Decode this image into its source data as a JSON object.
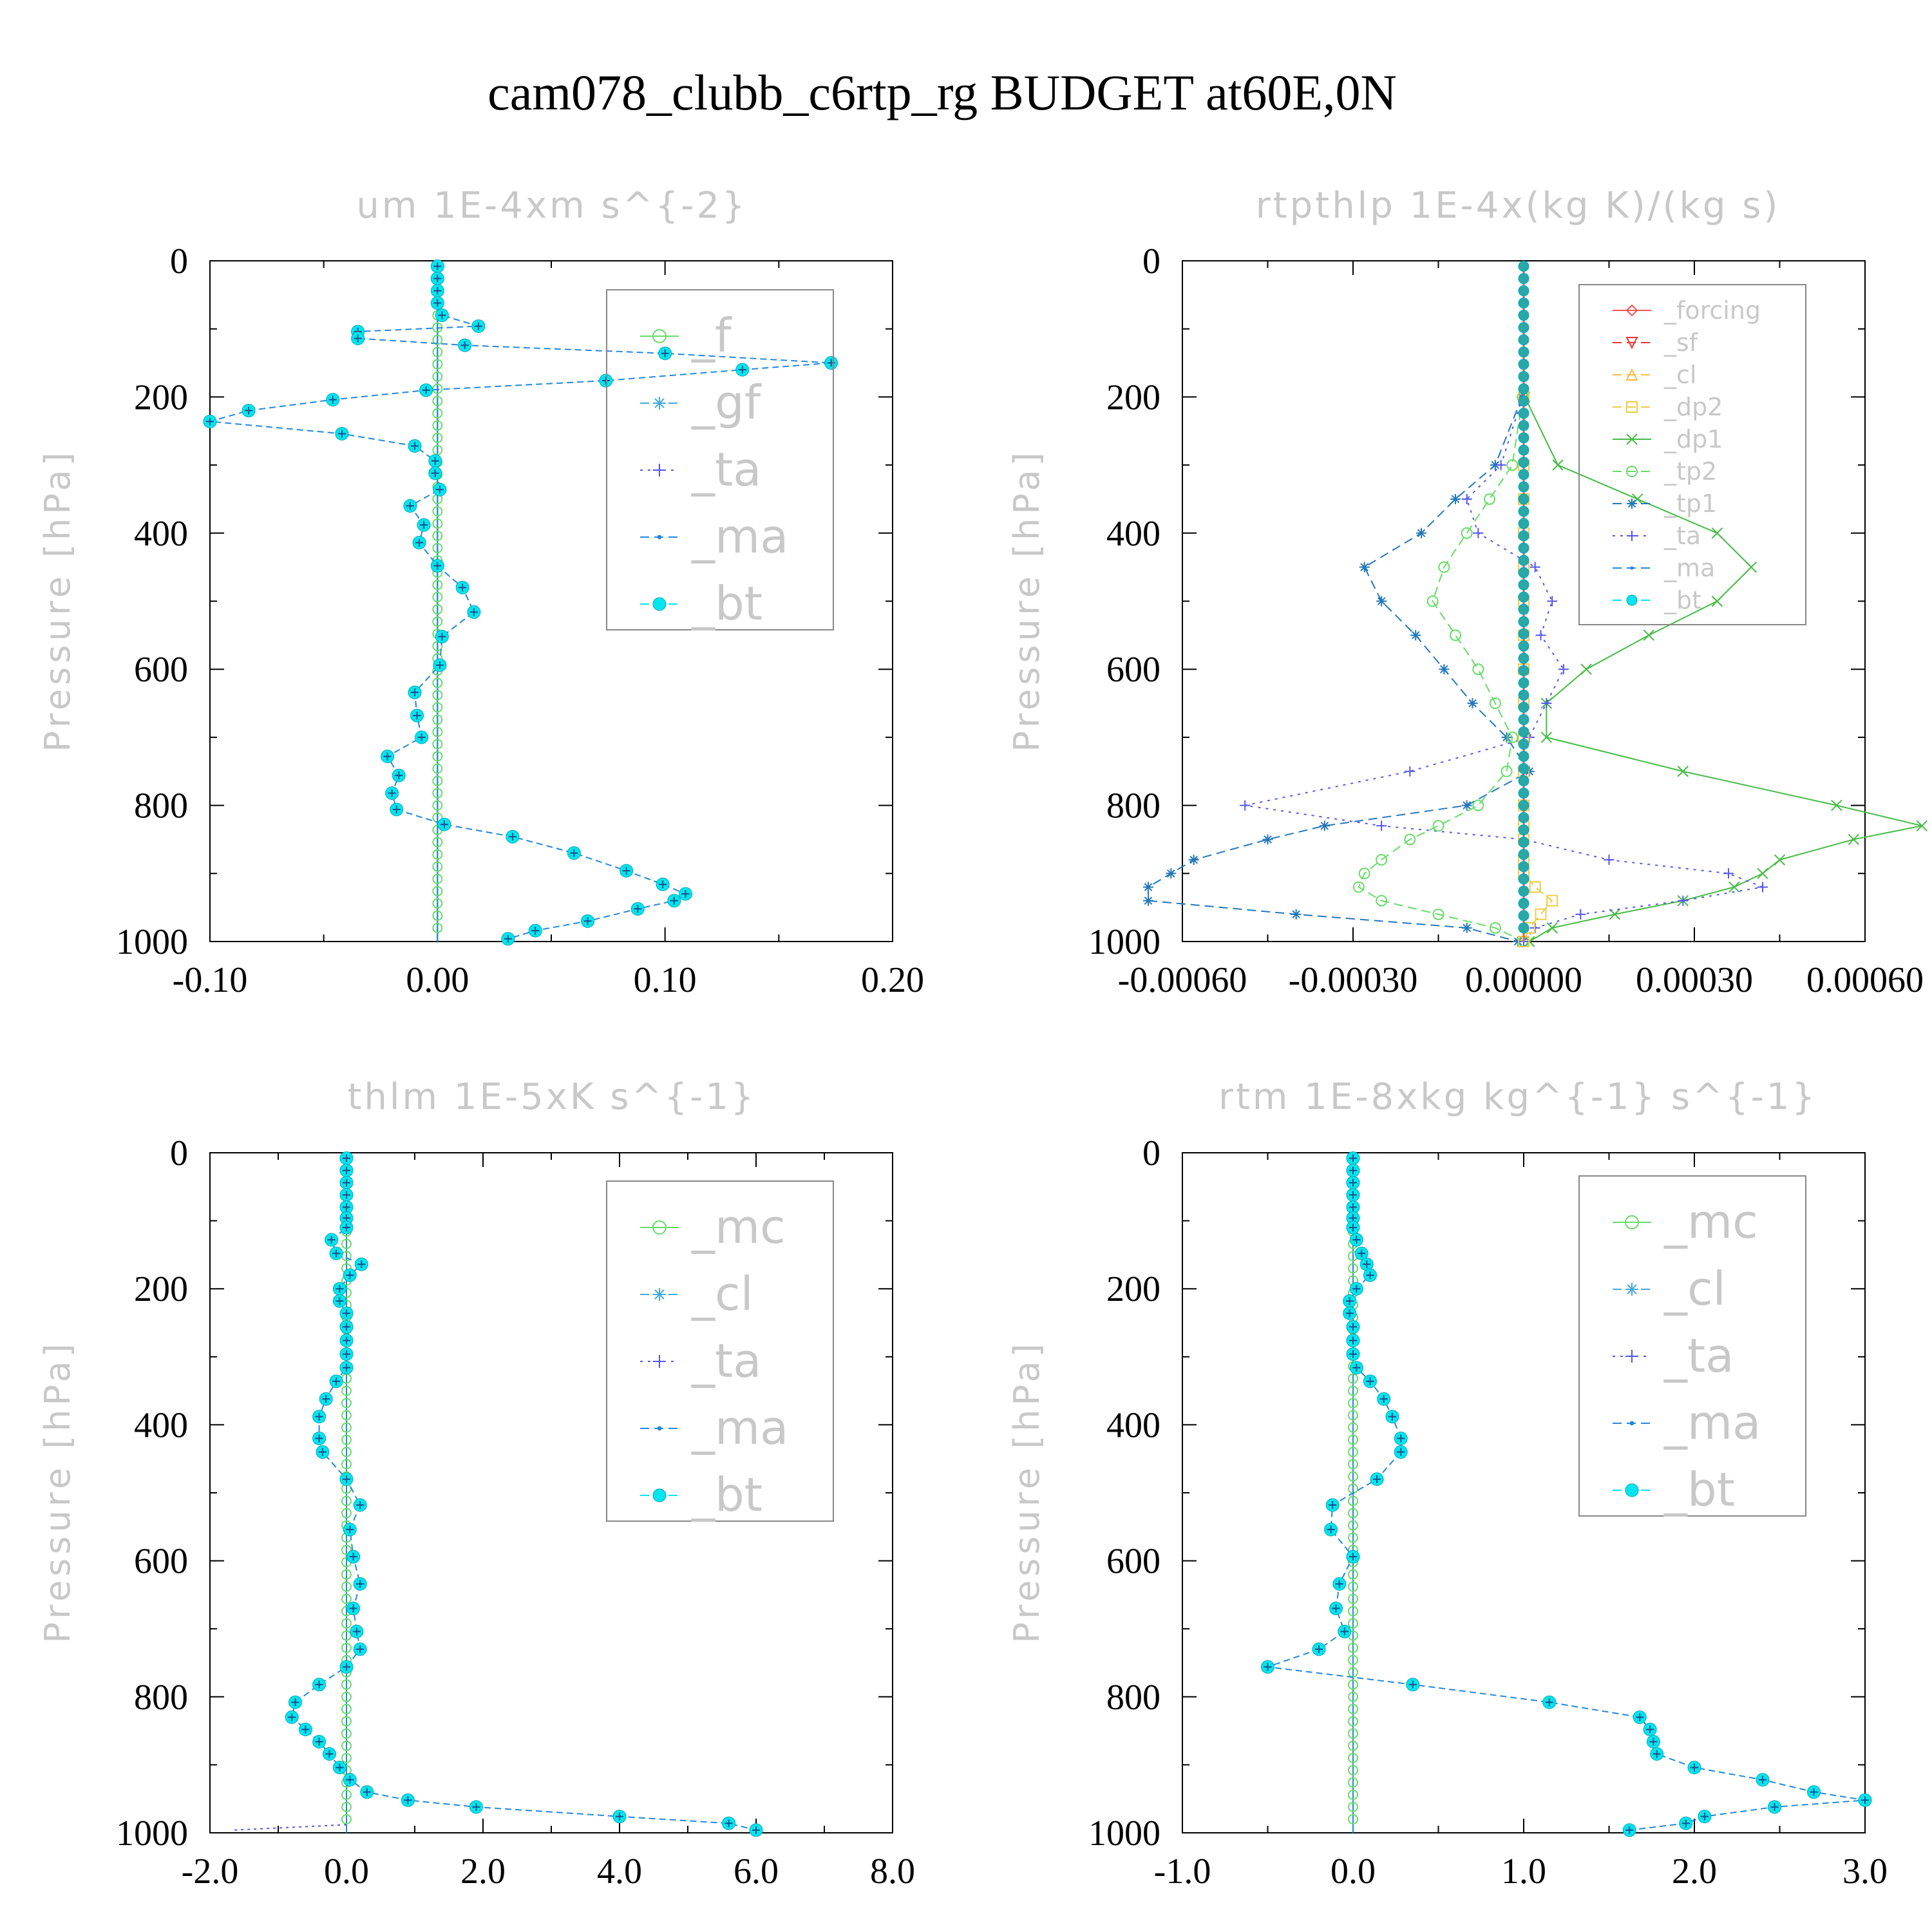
{
  "figure": {
    "title": "cam078_clubb_c6rtp_rg  BUDGET at60E,0N"
  },
  "chart_data": [
    {
      "id": "um",
      "type": "line",
      "title": "um   1E-4xm s^{-2}",
      "ylabel": "Pressure [hPa]",
      "xlim": [
        -0.1,
        0.2
      ],
      "xticks": [
        "-0.10",
        "0.00",
        "0.10",
        "0.20"
      ],
      "xtick_values": [
        -0.1,
        0.0,
        0.1,
        0.2
      ],
      "ylim": [
        0,
        1000
      ],
      "yticks": [
        "0",
        "200",
        "400",
        "600",
        "800",
        "1000"
      ],
      "legend_position": "top-right",
      "legend_size": "large",
      "series": [
        {
          "name": "_f",
          "color": "#66dd66",
          "marker": "circle-open",
          "style": "solid"
        },
        {
          "name": "_gf",
          "color": "#44aadd",
          "marker": "star",
          "style": "dash"
        },
        {
          "name": "_ta",
          "color": "#5555ee",
          "marker": "plus",
          "style": "dot"
        },
        {
          "name": "_ma",
          "color": "#2288dd",
          "marker": "dot",
          "style": "dash"
        },
        {
          "name": "_bt",
          "color": "#00e5ee",
          "marker": "filled-circle",
          "style": "dash"
        }
      ],
      "bt_profile": {
        "p": [
          8,
          26,
          44,
          62,
          80,
          96,
          104,
          114,
          124,
          136,
          150,
          160,
          176,
          190,
          204,
          220,
          236,
          254,
          272,
          294,
          312,
          336,
          360,
          388,
          414,
          448,
          480,
          516,
          552,
          594,
          634,
          668,
          700,
          728,
          756,
          782,
          806,
          828,
          846,
          870,
          896,
          916,
          930,
          940,
          952,
          970,
          984,
          996
        ],
        "x": [
          0,
          0,
          0,
          0,
          0.002,
          0.018,
          -0.035,
          -0.035,
          0.012,
          0.1,
          0.173,
          0.134,
          0.074,
          -0.005,
          -0.046,
          -0.083,
          -0.1,
          -0.042,
          -0.01,
          -0.001,
          -0.001,
          0.001,
          -0.012,
          -0.006,
          -0.008,
          0,
          0.011,
          0.016,
          0.002,
          0.001,
          -0.01,
          -0.009,
          -0.007,
          -0.022,
          -0.017,
          -0.02,
          -0.018,
          0.003,
          0.033,
          0.06,
          0.083,
          0.099,
          0.109,
          0.104,
          0.088,
          0.066,
          0.043,
          0.031
        ]
      }
    },
    {
      "id": "rtpthlp",
      "type": "line",
      "title": "rtpthlp   1E-4x(kg K)/(kg s)",
      "ylabel": "Pressure [hPa]",
      "xlim": [
        -0.0006,
        0.0006
      ],
      "xticks": [
        "-0.00060",
        "-0.00030",
        "0.00000",
        "0.00030",
        "0.00060"
      ],
      "xtick_values": [
        -0.0006,
        -0.0003,
        0.0,
        0.0003,
        0.0006
      ],
      "ylim": [
        0,
        1000
      ],
      "yticks": [
        "0",
        "200",
        "400",
        "600",
        "800",
        "1000"
      ],
      "legend_position": "top-right",
      "legend_size": "small",
      "series": [
        {
          "name": "_forcing",
          "color": "#ee5555",
          "marker": "diamond",
          "style": "solid"
        },
        {
          "name": "_sf",
          "color": "#ee3333",
          "marker": "triangle-down",
          "style": "dash"
        },
        {
          "name": "_cl",
          "color": "#ffbb44",
          "marker": "triangle-up",
          "style": "dash"
        },
        {
          "name": "_dp2",
          "color": "#eecc44",
          "marker": "square",
          "style": "dash"
        },
        {
          "name": "_dp1",
          "color": "#44bb44",
          "marker": "x",
          "style": "solid"
        },
        {
          "name": "_tp2",
          "color": "#66dd66",
          "marker": "circle-open",
          "style": "dash"
        },
        {
          "name": "_tp1",
          "color": "#2277bb",
          "marker": "star",
          "style": "dash"
        },
        {
          "name": "_ta",
          "color": "#5555ee",
          "marker": "plus",
          "style": "dot"
        },
        {
          "name": "_ma",
          "color": "#2288dd",
          "marker": "dot",
          "style": "dash"
        },
        {
          "name": "_bt",
          "color": "#00e5ee",
          "marker": "filled-circle",
          "style": "dash"
        }
      ],
      "profiles": {
        "p": [
          200,
          300,
          350,
          400,
          450,
          500,
          550,
          600,
          650,
          700,
          750,
          800,
          830,
          850,
          880,
          900,
          920,
          940,
          960,
          980,
          1000
        ],
        "_dp1": [
          2e-06,
          6e-05,
          0.0002,
          0.00034,
          0.0004,
          0.00034,
          0.00022,
          0.00011,
          4e-05,
          4e-05,
          0.00028,
          0.00055,
          0.0007,
          0.00058,
          0.00045,
          0.00042,
          0.00037,
          0.00028,
          0.00016,
          5e-05,
          1e-05
        ],
        "_tp1": [
          -3e-06,
          -5e-05,
          -0.00012,
          -0.00018,
          -0.00028,
          -0.00025,
          -0.00019,
          -0.00014,
          -9e-05,
          -3e-05,
          1e-05,
          -0.0001,
          -0.00035,
          -0.00045,
          -0.00058,
          -0.00062,
          -0.00066,
          -0.00066,
          -0.0004,
          -0.0001,
          -1e-05
        ],
        "_ta": [
          -2e-06,
          -4e-05,
          -0.0001,
          -8e-05,
          2e-05,
          5e-05,
          3e-05,
          7e-05,
          4e-05,
          1e-05,
          -0.0002,
          -0.00049,
          -0.00025,
          0,
          0.00015,
          0.00036,
          0.00042,
          0.00028,
          0.0001,
          2e-05,
          0
        ],
        "_tp2": [
          -2e-06,
          -2e-05,
          -6e-05,
          -0.0001,
          -0.00014,
          -0.00016,
          -0.00012,
          -8e-05,
          -5e-05,
          -2e-05,
          -3e-05,
          -8e-05,
          -0.00015,
          -0.0002,
          -0.00025,
          -0.00028,
          -0.00029,
          -0.00025,
          -0.00015,
          -5e-05,
          0
        ],
        "_dp2": [
          0,
          0,
          0,
          0,
          0,
          0,
          0,
          0,
          0,
          0,
          0,
          0,
          0,
          0,
          0,
          0,
          2e-05,
          5e-05,
          3e-05,
          1e-05,
          0
        ]
      }
    },
    {
      "id": "thlm",
      "type": "line",
      "title": "thlm   1E-5xK s^{-1}",
      "ylabel": "Pressure [hPa]",
      "xlim": [
        -2.0,
        8.0
      ],
      "xticks": [
        "-2.0",
        "0.0",
        "2.0",
        "4.0",
        "6.0",
        "8.0"
      ],
      "xtick_values": [
        -2,
        0,
        2,
        4,
        6,
        8
      ],
      "ylim": [
        0,
        1000
      ],
      "yticks": [
        "0",
        "200",
        "400",
        "600",
        "800",
        "1000"
      ],
      "legend_position": "top-right",
      "legend_size": "large",
      "series": [
        {
          "name": "_mc",
          "color": "#66dd66",
          "marker": "circle-open",
          "style": "solid"
        },
        {
          "name": "_cl",
          "color": "#44aadd",
          "marker": "star",
          "style": "dash"
        },
        {
          "name": "_ta",
          "color": "#5555ee",
          "marker": "plus",
          "style": "dot"
        },
        {
          "name": "_ma",
          "color": "#2288dd",
          "marker": "dot",
          "style": "dash"
        },
        {
          "name": "_bt",
          "color": "#00e5ee",
          "marker": "filled-circle",
          "style": "dash"
        }
      ],
      "bt_profile": {
        "p": [
          8,
          26,
          44,
          62,
          80,
          96,
          110,
          128,
          148,
          164,
          180,
          200,
          218,
          236,
          256,
          276,
          296,
          316,
          336,
          362,
          388,
          420,
          440,
          480,
          518,
          554,
          594,
          634,
          670,
          704,
          730,
          756,
          782,
          808,
          830,
          848,
          866,
          884,
          904,
          922,
          940,
          952,
          962,
          976,
          986,
          996
        ],
        "x": [
          0,
          0,
          0,
          0,
          0,
          0,
          0,
          -0.22,
          -0.15,
          0.22,
          0.05,
          -0.1,
          -0.1,
          0,
          0,
          0,
          0,
          0,
          -0.15,
          -0.3,
          -0.4,
          -0.4,
          -0.35,
          0,
          0.2,
          0.05,
          0.1,
          0.2,
          0.1,
          0.15,
          0.2,
          0,
          -0.4,
          -0.75,
          -0.8,
          -0.6,
          -0.4,
          -0.25,
          -0.1,
          0.05,
          0.3,
          0.9,
          1.9,
          4.0,
          5.6,
          6.0
        ]
      },
      "ta_spike": {
        "p": 996,
        "x": -1.65
      }
    },
    {
      "id": "rtm",
      "type": "line",
      "title": "rtm   1E-8xkg kg^{-1} s^{-1}",
      "ylabel": "Pressure [hPa]",
      "xlim": [
        -1.0,
        3.0
      ],
      "xticks": [
        "-1.0",
        "0.0",
        "1.0",
        "2.0",
        "3.0"
      ],
      "xtick_values": [
        -1,
        0,
        1,
        2,
        3
      ],
      "ylim": [
        0,
        1000
      ],
      "yticks": [
        "0",
        "200",
        "400",
        "600",
        "800",
        "1000"
      ],
      "legend_position": "top-right",
      "legend_size": "large",
      "series": [
        {
          "name": "_mc",
          "color": "#66dd66",
          "marker": "circle-open",
          "style": "solid"
        },
        {
          "name": "_cl",
          "color": "#44aadd",
          "marker": "star",
          "style": "dash"
        },
        {
          "name": "_ta",
          "color": "#5555ee",
          "marker": "plus",
          "style": "dot"
        },
        {
          "name": "_ma",
          "color": "#2288dd",
          "marker": "dot",
          "style": "dash"
        },
        {
          "name": "_bt",
          "color": "#00e5ee",
          "marker": "filled-circle",
          "style": "dash"
        }
      ],
      "bt_profile": {
        "p": [
          8,
          26,
          44,
          62,
          80,
          96,
          110,
          128,
          148,
          164,
          180,
          200,
          218,
          236,
          256,
          276,
          296,
          316,
          336,
          362,
          388,
          420,
          440,
          480,
          518,
          554,
          594,
          634,
          670,
          704,
          730,
          756,
          782,
          808,
          830,
          848,
          866,
          884,
          904,
          922,
          940,
          952,
          962,
          976,
          986,
          996
        ],
        "x": [
          0,
          0,
          0,
          0,
          0,
          0,
          0,
          0.02,
          0.05,
          0.08,
          0.1,
          0.02,
          -0.02,
          -0.02,
          0,
          0,
          0,
          0.02,
          0.1,
          0.18,
          0.23,
          0.28,
          0.28,
          0.14,
          -0.12,
          -0.13,
          0,
          -0.08,
          -0.1,
          -0.05,
          -0.2,
          -0.5,
          0.35,
          1.15,
          1.68,
          1.74,
          1.76,
          1.78,
          2.0,
          2.4,
          2.7,
          3.0,
          2.47,
          2.06,
          1.95,
          1.62
        ]
      }
    }
  ]
}
